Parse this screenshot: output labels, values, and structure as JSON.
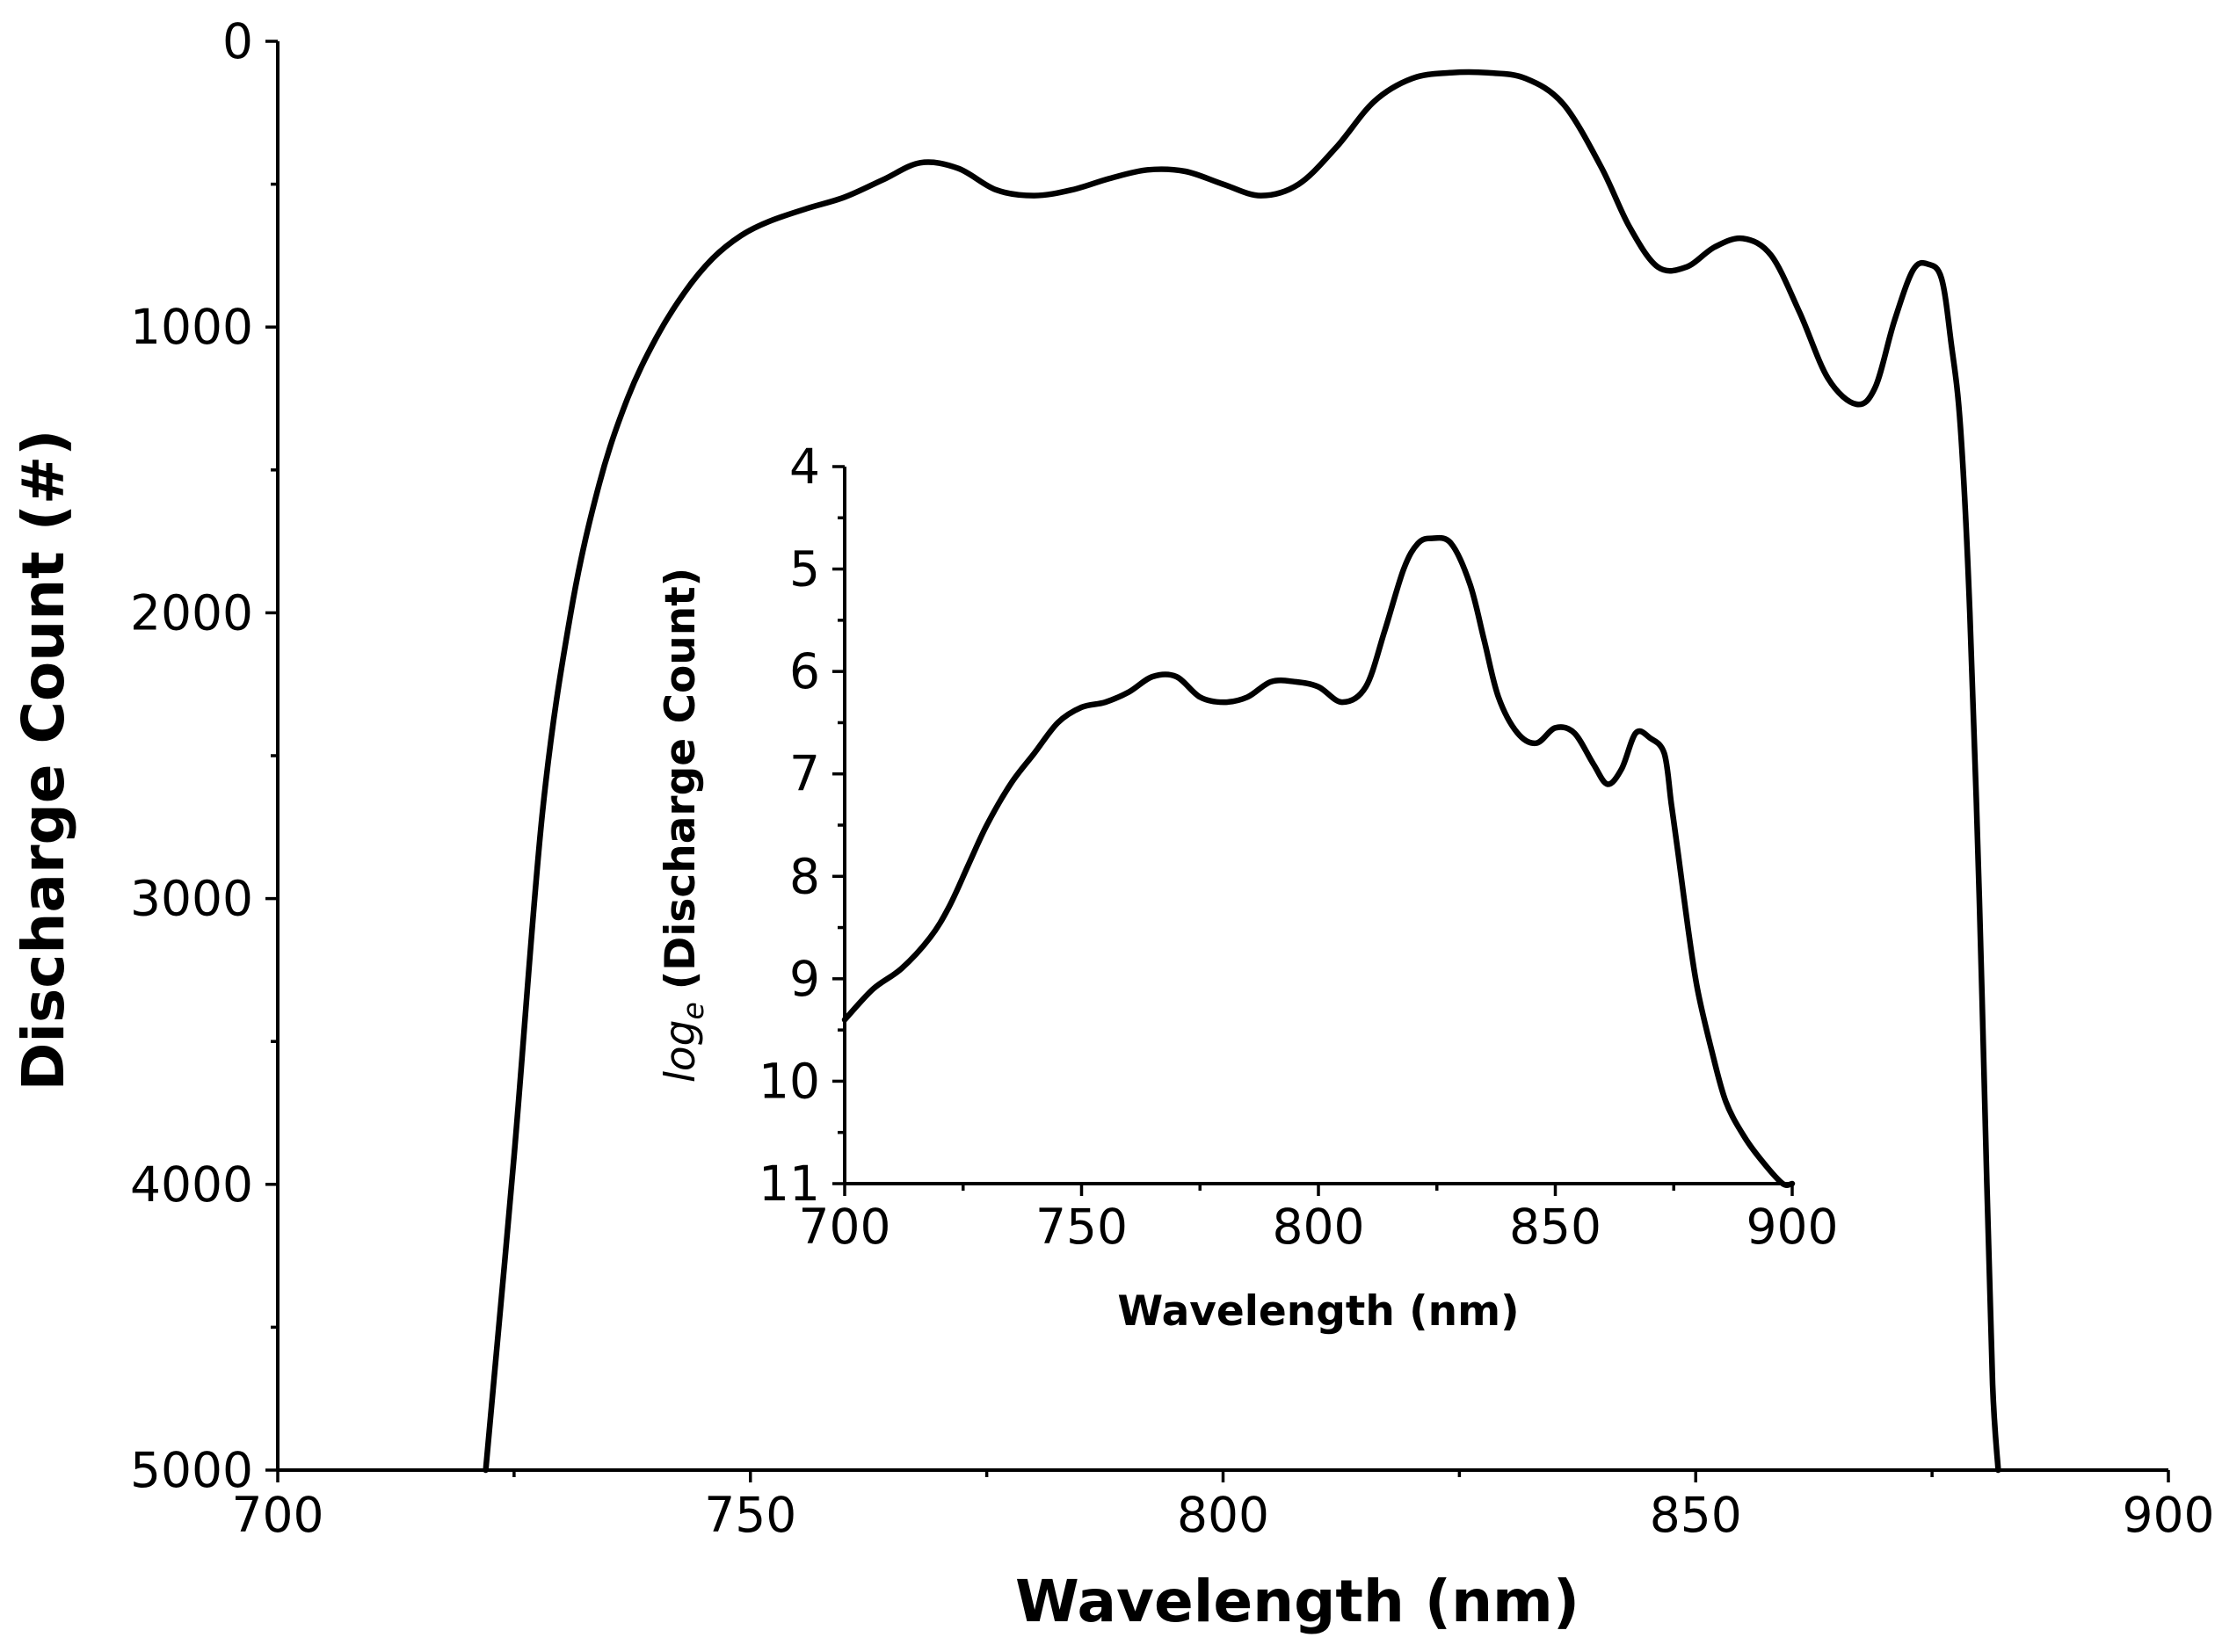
{
  "chart_data": [
    {
      "type": "line",
      "role": "main",
      "xlabel": "Wavelength (nm)",
      "ylabel": "Discharge Count (#)",
      "xlim": [
        700,
        900
      ],
      "ylim": [
        0,
        5000
      ],
      "y_inverted": true,
      "xticks": [
        "700",
        "750",
        "800",
        "850",
        "900"
      ],
      "yticks": [
        "0",
        "1000",
        "2000",
        "3000",
        "4000",
        "5000"
      ],
      "series": [
        {
          "name": "Discharge Count",
          "x": [
            722,
            725,
            728,
            731,
            734,
            737,
            740,
            743,
            746,
            749,
            752,
            756,
            760,
            764,
            768,
            772,
            776,
            780,
            784,
            788,
            792,
            796,
            800,
            804,
            808,
            812,
            816,
            820,
            824,
            828,
            832,
            836,
            840,
            843,
            846,
            849,
            852,
            855,
            858,
            861,
            864,
            867,
            869,
            871,
            873,
            874.6,
            876,
            877,
            878,
            879,
            880,
            880.8,
            881.4,
            882
          ],
          "y": [
            5000,
            3900,
            2700,
            2000,
            1550,
            1250,
            1040,
            880,
            760,
            680,
            630,
            585,
            545,
            485,
            425,
            445,
            520,
            540,
            520,
            480,
            450,
            455,
            500,
            540,
            500,
            370,
            210,
            130,
            110,
            110,
            130,
            220,
            440,
            650,
            790,
            790,
            720,
            690,
            750,
            950,
            1180,
            1270,
            1210,
            980,
            800,
            780,
            830,
            1050,
            1350,
            2000,
            3000,
            4000,
            4700,
            5000
          ]
        }
      ]
    },
    {
      "type": "line",
      "role": "inset",
      "xlabel": "Wavelength (nm)",
      "ylabel_prefix": "log",
      "ylabel_subscript": "e",
      "ylabel_suffix": "(Discharge Count)",
      "xlim": [
        700,
        900
      ],
      "ylim": [
        4,
        11
      ],
      "y_inverted": true,
      "xticks": [
        "700",
        "750",
        "800",
        "850",
        "900"
      ],
      "yticks": [
        "4",
        "5",
        "6",
        "7",
        "8",
        "9",
        "10",
        "11"
      ],
      "series": [
        {
          "name": "log_e(Discharge Count)",
          "x": [
            700,
            706,
            712,
            718,
            722,
            726,
            730,
            735,
            740,
            745,
            750,
            755,
            760,
            765,
            770,
            775,
            780,
            785,
            790,
            795,
            800,
            805,
            810,
            814,
            818,
            821,
            824,
            828,
            832,
            835,
            838,
            842,
            846,
            850,
            854,
            858,
            861,
            864,
            867,
            870,
            873,
            874.5,
            876,
            878,
            880,
            883,
            886,
            890,
            894,
            898,
            900
          ],
          "y": [
            9.4,
            9.1,
            8.9,
            8.6,
            8.3,
            7.9,
            7.5,
            7.1,
            6.8,
            6.5,
            6.35,
            6.3,
            6.2,
            6.05,
            6.05,
            6.25,
            6.3,
            6.25,
            6.1,
            6.1,
            6.15,
            6.3,
            6.15,
            5.6,
            5.0,
            4.75,
            4.7,
            4.75,
            5.15,
            5.7,
            6.25,
            6.6,
            6.7,
            6.55,
            6.6,
            6.9,
            7.1,
            6.95,
            6.6,
            6.65,
            6.8,
            7.3,
            7.8,
            8.5,
            9.1,
            9.7,
            10.2,
            10.55,
            10.8,
            11.0,
            11.0
          ]
        }
      ]
    }
  ]
}
